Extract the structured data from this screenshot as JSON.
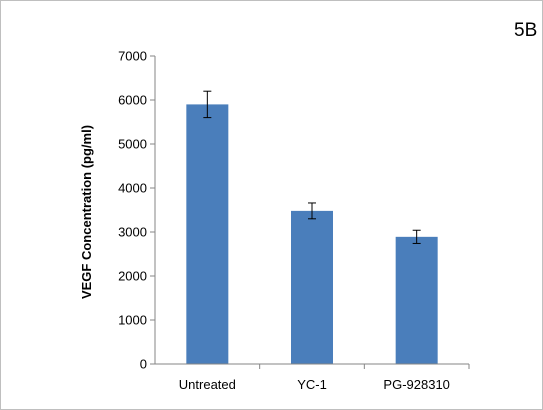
{
  "panel_label": "5B",
  "colors": {
    "bar": "#4a7ebb",
    "axis": "#868686",
    "error_bar": "#000000"
  },
  "chart_data": {
    "type": "bar",
    "title": "",
    "xlabel": "",
    "ylabel": "VEGF Concentration (pg/ml)",
    "categories": [
      "Untreated",
      "YC-1",
      "PG-928310"
    ],
    "values": [
      5900,
      3480,
      2890
    ],
    "errors": [
      300,
      180,
      150
    ],
    "ylim": [
      0,
      7000
    ],
    "yticks": [
      0,
      1000,
      2000,
      3000,
      4000,
      5000,
      6000,
      7000
    ],
    "grid": false,
    "legend": "none"
  }
}
